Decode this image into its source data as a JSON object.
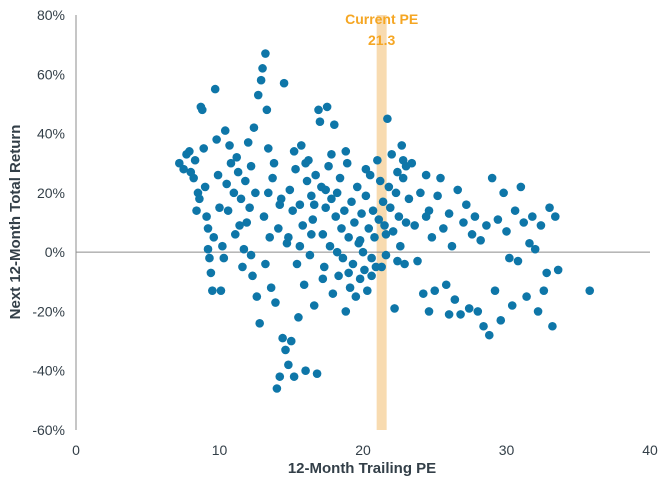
{
  "colors": {
    "points": "#0e76a8",
    "band": "#f8dbb0",
    "annotation": "#f5a623",
    "axis": "#8c8c8c",
    "text": "#333f48"
  },
  "chart_data": {
    "type": "scatter",
    "title": "",
    "xlabel": "12-Month Trailing PE",
    "ylabel": "Next 12-Month Total Return",
    "xlim": [
      0,
      40
    ],
    "ylim": [
      -60,
      80
    ],
    "x_ticks": [
      "0",
      "10",
      "20",
      "30",
      "40"
    ],
    "y_ticks": [
      "80%",
      "60%",
      "40%",
      "20%",
      "0%",
      "-20%",
      "-40%",
      "-60%"
    ],
    "grid": false,
    "annotation": {
      "line1": "Current PE",
      "line2": "21.3",
      "x": 21.3
    },
    "points": [
      [
        7.2,
        30
      ],
      [
        7.5,
        28
      ],
      [
        7.7,
        33
      ],
      [
        7.9,
        34
      ],
      [
        8.0,
        27
      ],
      [
        8.2,
        25
      ],
      [
        8.3,
        31
      ],
      [
        8.5,
        20
      ],
      [
        8.6,
        18
      ],
      [
        8.7,
        49
      ],
      [
        8.8,
        48
      ],
      [
        8.9,
        35
      ],
      [
        9.0,
        22
      ],
      [
        9.1,
        12
      ],
      [
        9.2,
        8
      ],
      [
        9.3,
        -2
      ],
      [
        9.4,
        -7
      ],
      [
        9.5,
        -13
      ],
      [
        9.6,
        5
      ],
      [
        9.7,
        55
      ],
      [
        9.8,
        38
      ],
      [
        9.9,
        26
      ],
      [
        10.0,
        15
      ],
      [
        10.1,
        -13
      ],
      [
        10.2,
        2
      ],
      [
        10.4,
        41
      ],
      [
        10.5,
        23
      ],
      [
        10.6,
        14
      ],
      [
        10.7,
        36
      ],
      [
        10.8,
        30
      ],
      [
        11.0,
        20
      ],
      [
        11.1,
        6
      ],
      [
        11.2,
        32
      ],
      [
        11.3,
        27
      ],
      [
        11.5,
        18
      ],
      [
        11.6,
        -5
      ],
      [
        11.7,
        1
      ],
      [
        11.8,
        24
      ],
      [
        11.9,
        10
      ],
      [
        12.0,
        37
      ],
      [
        12.1,
        15
      ],
      [
        12.2,
        29
      ],
      [
        12.3,
        -8
      ],
      [
        12.4,
        42
      ],
      [
        12.5,
        20
      ],
      [
        12.6,
        -15
      ],
      [
        12.7,
        53
      ],
      [
        12.8,
        -24
      ],
      [
        12.9,
        58
      ],
      [
        13.0,
        62
      ],
      [
        13.1,
        12
      ],
      [
        13.2,
        67
      ],
      [
        13.3,
        48
      ],
      [
        13.4,
        35
      ],
      [
        13.5,
        5
      ],
      [
        13.6,
        -12
      ],
      [
        13.7,
        25
      ],
      [
        13.8,
        30
      ],
      [
        13.9,
        -17
      ],
      [
        14.0,
        -46
      ],
      [
        14.1,
        8
      ],
      [
        14.2,
        -42
      ],
      [
        14.3,
        18
      ],
      [
        14.4,
        -29
      ],
      [
        14.5,
        57
      ],
      [
        14.6,
        -33
      ],
      [
        14.7,
        3
      ],
      [
        14.8,
        -38
      ],
      [
        14.9,
        21
      ],
      [
        15.0,
        -30
      ],
      [
        15.1,
        14
      ],
      [
        15.2,
        -42
      ],
      [
        15.3,
        28
      ],
      [
        15.4,
        -4
      ],
      [
        15.5,
        -22
      ],
      [
        15.6,
        16
      ],
      [
        15.7,
        36
      ],
      [
        15.8,
        9
      ],
      [
        15.9,
        -11
      ],
      [
        16.0,
        -40
      ],
      [
        16.1,
        24
      ],
      [
        16.2,
        31
      ],
      [
        16.3,
        -1
      ],
      [
        16.4,
        19
      ],
      [
        16.5,
        11
      ],
      [
        16.6,
        -18
      ],
      [
        16.7,
        26
      ],
      [
        16.8,
        -41
      ],
      [
        16.9,
        48
      ],
      [
        17.0,
        44
      ],
      [
        17.1,
        22
      ],
      [
        17.2,
        6
      ],
      [
        17.3,
        -5
      ],
      [
        17.4,
        15
      ],
      [
        17.5,
        49
      ],
      [
        17.6,
        29
      ],
      [
        17.7,
        2
      ],
      [
        17.8,
        18
      ],
      [
        17.9,
        -14
      ],
      [
        18.0,
        43
      ],
      [
        18.1,
        12
      ],
      [
        18.2,
        20
      ],
      [
        18.3,
        -8
      ],
      [
        18.4,
        25
      ],
      [
        18.5,
        8
      ],
      [
        18.6,
        -2
      ],
      [
        18.7,
        14
      ],
      [
        18.8,
        -20
      ],
      [
        18.9,
        30
      ],
      [
        19.0,
        5
      ],
      [
        19.1,
        -12
      ],
      [
        19.2,
        17
      ],
      [
        19.3,
        -4
      ],
      [
        19.4,
        10
      ],
      [
        19.5,
        -15
      ],
      [
        19.6,
        22
      ],
      [
        19.7,
        3
      ],
      [
        19.8,
        -9
      ],
      [
        19.9,
        13
      ],
      [
        20.0,
        0
      ],
      [
        20.1,
        -6
      ],
      [
        20.2,
        19
      ],
      [
        20.3,
        -13
      ],
      [
        20.4,
        8
      ],
      [
        20.5,
        26
      ],
      [
        20.6,
        -2
      ],
      [
        20.7,
        14
      ],
      [
        20.8,
        5
      ],
      [
        20.9,
        -5
      ],
      [
        21.0,
        31
      ],
      [
        21.1,
        11
      ],
      [
        21.2,
        24
      ],
      [
        21.3,
        -5
      ],
      [
        21.4,
        17
      ],
      [
        21.5,
        9
      ],
      [
        21.6,
        -1
      ],
      [
        21.7,
        45
      ],
      [
        21.8,
        22
      ],
      [
        21.9,
        15
      ],
      [
        22.0,
        33
      ],
      [
        22.1,
        7
      ],
      [
        22.2,
        -19
      ],
      [
        22.3,
        20
      ],
      [
        22.4,
        27
      ],
      [
        22.5,
        12
      ],
      [
        22.6,
        2
      ],
      [
        22.7,
        36
      ],
      [
        22.8,
        25
      ],
      [
        22.9,
        -4
      ],
      [
        23.0,
        29
      ],
      [
        23.2,
        18
      ],
      [
        23.4,
        30
      ],
      [
        23.6,
        9
      ],
      [
        23.8,
        -3
      ],
      [
        24.0,
        20
      ],
      [
        24.2,
        -14
      ],
      [
        24.4,
        26
      ],
      [
        24.6,
        14
      ],
      [
        24.8,
        5
      ],
      [
        25.0,
        -13
      ],
      [
        25.2,
        19
      ],
      [
        25.4,
        25
      ],
      [
        25.6,
        8
      ],
      [
        25.8,
        -11
      ],
      [
        26.0,
        13
      ],
      [
        26.2,
        2
      ],
      [
        26.4,
        -16
      ],
      [
        26.6,
        21
      ],
      [
        26.8,
        -21
      ],
      [
        27.0,
        10
      ],
      [
        27.2,
        16
      ],
      [
        27.4,
        -19
      ],
      [
        27.6,
        6
      ],
      [
        27.8,
        12
      ],
      [
        28.0,
        -20
      ],
      [
        28.2,
        4
      ],
      [
        28.4,
        -25
      ],
      [
        28.6,
        9
      ],
      [
        28.8,
        -28
      ],
      [
        29.0,
        25
      ],
      [
        29.2,
        -13
      ],
      [
        29.4,
        11
      ],
      [
        29.6,
        -23
      ],
      [
        29.8,
        20
      ],
      [
        30.0,
        7
      ],
      [
        30.2,
        -2
      ],
      [
        30.4,
        -18
      ],
      [
        30.6,
        14
      ],
      [
        30.8,
        -3
      ],
      [
        31.0,
        22
      ],
      [
        31.2,
        10
      ],
      [
        31.4,
        -15
      ],
      [
        31.6,
        3
      ],
      [
        31.8,
        12
      ],
      [
        32.0,
        1
      ],
      [
        32.2,
        -20
      ],
      [
        32.4,
        9
      ],
      [
        32.6,
        -13
      ],
      [
        32.8,
        -7
      ],
      [
        33.0,
        15
      ],
      [
        33.2,
        -25
      ],
      [
        33.4,
        12
      ],
      [
        33.6,
        -6
      ],
      [
        35.8,
        -13
      ],
      [
        8.4,
        14
      ],
      [
        9.2,
        1
      ],
      [
        10.3,
        -2
      ],
      [
        11.4,
        9
      ],
      [
        12.2,
        -1
      ],
      [
        13.2,
        -4
      ],
      [
        14.8,
        5
      ],
      [
        15.6,
        2
      ],
      [
        16.4,
        6
      ],
      [
        17.2,
        -9
      ],
      [
        18.2,
        0
      ],
      [
        19.0,
        -7
      ],
      [
        19.8,
        4
      ],
      [
        20.6,
        -8
      ],
      [
        21.6,
        6
      ],
      [
        22.4,
        -3
      ],
      [
        24.6,
        -20
      ],
      [
        26.0,
        -21
      ],
      [
        15.2,
        34
      ],
      [
        16.0,
        30
      ],
      [
        17.8,
        33
      ],
      [
        18.8,
        34
      ],
      [
        20.2,
        28
      ],
      [
        22.8,
        31
      ],
      [
        23.0,
        10
      ],
      [
        24.4,
        12
      ],
      [
        13.4,
        20
      ],
      [
        14.2,
        16
      ],
      [
        16.6,
        16
      ],
      [
        17.4,
        21
      ]
    ]
  }
}
